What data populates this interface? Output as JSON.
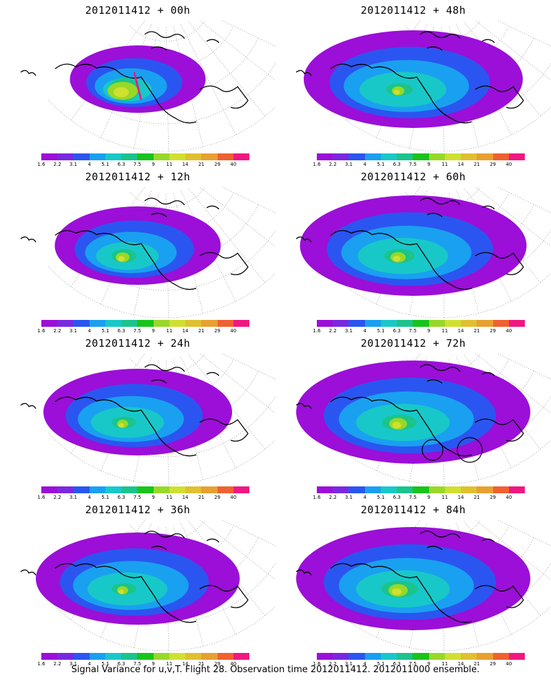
{
  "panels": [
    {
      "title": "2012011412 + 00h",
      "spread": 0.35,
      "hot": 0.9,
      "track": true,
      "circles": false
    },
    {
      "title": "2012011412 + 48h",
      "spread": 0.9,
      "hot": 0.25,
      "track": false,
      "circles": false
    },
    {
      "title": "2012011412 + 12h",
      "spread": 0.55,
      "hot": 0.3,
      "track": false,
      "circles": false
    },
    {
      "title": "2012011412 + 60h",
      "spread": 0.95,
      "hot": 0.35,
      "track": false,
      "circles": false
    },
    {
      "title": "2012011412 + 24h",
      "spread": 0.7,
      "hot": 0.2,
      "track": false,
      "circles": false
    },
    {
      "title": "2012011412 + 72h",
      "spread": 1.0,
      "hot": 0.45,
      "track": false,
      "circles": true
    },
    {
      "title": "2012011412 + 36h",
      "spread": 0.8,
      "hot": 0.2,
      "track": false,
      "circles": false
    },
    {
      "title": "2012011412 + 84h",
      "spread": 1.0,
      "hot": 0.5,
      "track": false,
      "circles": false
    }
  ],
  "colorbar": {
    "labels": [
      "1.6",
      "2.2",
      "3.1",
      "4",
      "5.1",
      "6.3",
      "7.5",
      "9",
      "11",
      "14",
      "21",
      "29",
      "40"
    ],
    "colors": [
      "#9b0fd8",
      "#7a28e0",
      "#2b55f0",
      "#1aa0f0",
      "#18c8c8",
      "#1ac48c",
      "#18c41a",
      "#98d828",
      "#d0e030",
      "#e0c030",
      "#e8a030",
      "#f06030",
      "#f01880"
    ]
  },
  "footer": "Signal Variance for u,v,T. Flight 28. Observation time 2012011412. 2012011000 ensemble."
}
